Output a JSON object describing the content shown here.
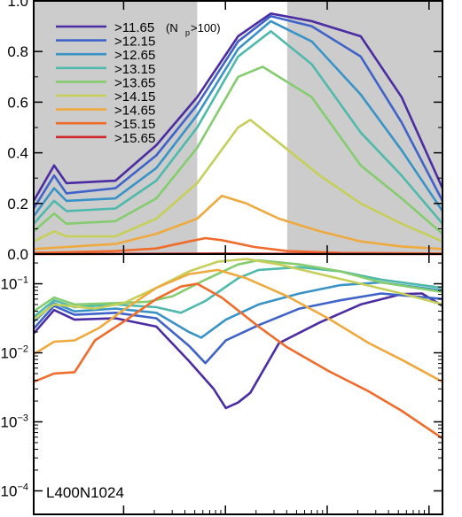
{
  "chart_data": [
    {
      "type": "line",
      "panel": "top",
      "x_tick_count": 4,
      "ylim": [
        0,
        1.0
      ],
      "yticks": [
        {
          "v": 0.0,
          "label": "0.0"
        },
        {
          "v": 0.2,
          "label": "0.2"
        },
        {
          "v": 0.4,
          "label": "0.4"
        },
        {
          "v": 0.6,
          "label": "0.6"
        },
        {
          "v": 0.8,
          "label": "0.8"
        },
        {
          "v": 1.0,
          "label": "1.0"
        }
      ],
      "shaded_bands": [
        {
          "from": 0.0,
          "to": 0.4,
          "color": "#cccccc"
        },
        {
          "from": 0.62,
          "to": 1.0,
          "color": "#cccccc"
        }
      ],
      "legend": {
        "placement": "top-left",
        "entries": [
          {
            "label": ">11.65",
            "note": "(N",
            "sub": "p",
            "note2": ">100)",
            "color": "#4b2ca3"
          },
          {
            "label": ">12.15",
            "color": "#3f63c8"
          },
          {
            "label": ">12.65",
            "color": "#3a93c6"
          },
          {
            "label": ">13.15",
            "color": "#4fb9ac"
          },
          {
            "label": ">13.65",
            "color": "#85cc6f"
          },
          {
            "label": ">14.15",
            "color": "#c5cf5a"
          },
          {
            "label": ">14.65",
            "color": "#eeaa3f"
          },
          {
            "label": ">15.15",
            "color": "#ef6c2c"
          },
          {
            "label": ">15.65",
            "color": "#d0282a"
          }
        ]
      },
      "series": [
        {
          "color": "#4b2ca3",
          "points": [
            [
              0.0,
              0.21
            ],
            [
              0.05,
              0.35
            ],
            [
              0.08,
              0.28
            ],
            [
              0.2,
              0.29
            ],
            [
              0.3,
              0.43
            ],
            [
              0.4,
              0.62
            ],
            [
              0.5,
              0.86
            ],
            [
              0.58,
              0.95
            ],
            [
              0.68,
              0.92
            ],
            [
              0.8,
              0.86
            ],
            [
              0.9,
              0.62
            ],
            [
              1.0,
              0.26
            ]
          ]
        },
        {
          "color": "#3f63c8",
          "points": [
            [
              0.0,
              0.18
            ],
            [
              0.05,
              0.31
            ],
            [
              0.08,
              0.24
            ],
            [
              0.2,
              0.26
            ],
            [
              0.3,
              0.39
            ],
            [
              0.4,
              0.59
            ],
            [
              0.5,
              0.84
            ],
            [
              0.58,
              0.94
            ],
            [
              0.68,
              0.9
            ],
            [
              0.8,
              0.78
            ],
            [
              0.9,
              0.52
            ],
            [
              1.0,
              0.21
            ]
          ]
        },
        {
          "color": "#3a93c6",
          "points": [
            [
              0.0,
              0.15
            ],
            [
              0.05,
              0.26
            ],
            [
              0.08,
              0.21
            ],
            [
              0.2,
              0.22
            ],
            [
              0.3,
              0.34
            ],
            [
              0.4,
              0.55
            ],
            [
              0.5,
              0.81
            ],
            [
              0.58,
              0.92
            ],
            [
              0.68,
              0.84
            ],
            [
              0.8,
              0.63
            ],
            [
              0.9,
              0.41
            ],
            [
              1.0,
              0.17
            ]
          ]
        },
        {
          "color": "#4fb9ac",
          "points": [
            [
              0.0,
              0.12
            ],
            [
              0.05,
              0.21
            ],
            [
              0.08,
              0.17
            ],
            [
              0.2,
              0.18
            ],
            [
              0.3,
              0.29
            ],
            [
              0.4,
              0.5
            ],
            [
              0.5,
              0.78
            ],
            [
              0.58,
              0.88
            ],
            [
              0.68,
              0.75
            ],
            [
              0.8,
              0.48
            ],
            [
              0.9,
              0.31
            ],
            [
              1.0,
              0.12
            ]
          ]
        },
        {
          "color": "#85cc6f",
          "points": [
            [
              0.0,
              0.09
            ],
            [
              0.05,
              0.16
            ],
            [
              0.08,
              0.12
            ],
            [
              0.2,
              0.13
            ],
            [
              0.3,
              0.22
            ],
            [
              0.4,
              0.42
            ],
            [
              0.5,
              0.7
            ],
            [
              0.56,
              0.74
            ],
            [
              0.68,
              0.62
            ],
            [
              0.8,
              0.35
            ],
            [
              0.9,
              0.22
            ],
            [
              1.0,
              0.08
            ]
          ]
        },
        {
          "color": "#c5cf5a",
          "points": [
            [
              0.0,
              0.05
            ],
            [
              0.05,
              0.09
            ],
            [
              0.08,
              0.07
            ],
            [
              0.2,
              0.07
            ],
            [
              0.3,
              0.14
            ],
            [
              0.4,
              0.28
            ],
            [
              0.5,
              0.5
            ],
            [
              0.53,
              0.53
            ],
            [
              0.6,
              0.44
            ],
            [
              0.7,
              0.31
            ],
            [
              0.8,
              0.2
            ],
            [
              0.9,
              0.12
            ],
            [
              1.0,
              0.05
            ]
          ]
        },
        {
          "color": "#eeaa3f",
          "points": [
            [
              0.0,
              0.02
            ],
            [
              0.1,
              0.03
            ],
            [
              0.2,
              0.04
            ],
            [
              0.3,
              0.08
            ],
            [
              0.4,
              0.14
            ],
            [
              0.46,
              0.23
            ],
            [
              0.52,
              0.2
            ],
            [
              0.6,
              0.14
            ],
            [
              0.7,
              0.09
            ],
            [
              0.8,
              0.05
            ],
            [
              0.9,
              0.03
            ],
            [
              1.0,
              0.02
            ]
          ]
        },
        {
          "color": "#ef6c2c",
          "points": [
            [
              0.0,
              0.005
            ],
            [
              0.1,
              0.008
            ],
            [
              0.2,
              0.012
            ],
            [
              0.3,
              0.022
            ],
            [
              0.38,
              0.05
            ],
            [
              0.42,
              0.063
            ],
            [
              0.46,
              0.055
            ],
            [
              0.54,
              0.028
            ],
            [
              0.62,
              0.012
            ],
            [
              0.75,
              0.005
            ],
            [
              0.9,
              0.003
            ],
            [
              1.0,
              0.002
            ]
          ]
        },
        {
          "color": "#d0282a",
          "points": [
            [
              0.0,
              0.0
            ],
            [
              0.3,
              0.001
            ],
            [
              0.45,
              0.002
            ],
            [
              0.6,
              0.001
            ],
            [
              1.0,
              0.0
            ]
          ]
        }
      ]
    },
    {
      "type": "line",
      "panel": "bottom",
      "y_scale": "log",
      "yticks": [
        {
          "exp": -1,
          "label_base": "10",
          "label_exp": "−1"
        },
        {
          "exp": -2,
          "label_base": "10",
          "label_exp": "−2"
        },
        {
          "exp": -3,
          "label_base": "10",
          "label_exp": "−3"
        },
        {
          "exp": -4,
          "label_base": "10",
          "label_exp": "−4"
        }
      ],
      "annotation": "L400N1024",
      "series": [
        {
          "color": "#4b2ca3",
          "points": [
            [
              0.0,
              -1.72
            ],
            [
              0.05,
              -1.38
            ],
            [
              0.1,
              -1.52
            ],
            [
              0.2,
              -1.5
            ],
            [
              0.3,
              -1.62
            ],
            [
              0.38,
              -2.12
            ],
            [
              0.44,
              -2.52
            ],
            [
              0.47,
              -2.8
            ],
            [
              0.5,
              -2.72
            ],
            [
              0.53,
              -2.58
            ],
            [
              0.6,
              -1.86
            ],
            [
              0.7,
              -1.56
            ],
            [
              0.8,
              -1.3
            ],
            [
              0.9,
              -1.15
            ],
            [
              0.95,
              -1.14
            ],
            [
              1.0,
              -1.32
            ]
          ]
        },
        {
          "color": "#3f63c8",
          "points": [
            [
              0.0,
              -1.65
            ],
            [
              0.05,
              -1.32
            ],
            [
              0.1,
              -1.45
            ],
            [
              0.2,
              -1.42
            ],
            [
              0.3,
              -1.5
            ],
            [
              0.38,
              -1.9
            ],
            [
              0.42,
              -2.15
            ],
            [
              0.47,
              -1.82
            ],
            [
              0.55,
              -1.6
            ],
            [
              0.65,
              -1.36
            ],
            [
              0.75,
              -1.24
            ],
            [
              0.85,
              -1.14
            ],
            [
              1.0,
              -1.22
            ]
          ]
        },
        {
          "color": "#3a93c6",
          "points": [
            [
              0.0,
              -1.55
            ],
            [
              0.05,
              -1.28
            ],
            [
              0.1,
              -1.4
            ],
            [
              0.2,
              -1.36
            ],
            [
              0.3,
              -1.42
            ],
            [
              0.38,
              -1.7
            ],
            [
              0.41,
              -1.78
            ],
            [
              0.47,
              -1.52
            ],
            [
              0.55,
              -1.3
            ],
            [
              0.65,
              -1.14
            ],
            [
              0.75,
              -1.02
            ],
            [
              0.85,
              -0.98
            ],
            [
              1.0,
              -1.1
            ]
          ]
        },
        {
          "color": "#4fb9ac",
          "points": [
            [
              0.0,
              -1.48
            ],
            [
              0.05,
              -1.24
            ],
            [
              0.1,
              -1.34
            ],
            [
              0.2,
              -1.3
            ],
            [
              0.3,
              -1.34
            ],
            [
              0.36,
              -1.42
            ],
            [
              0.42,
              -1.25
            ],
            [
              0.5,
              -0.92
            ],
            [
              0.55,
              -0.8
            ],
            [
              0.65,
              -0.76
            ],
            [
              0.75,
              -0.82
            ],
            [
              0.85,
              -0.94
            ],
            [
              1.0,
              -1.06
            ]
          ]
        },
        {
          "color": "#85cc6f",
          "points": [
            [
              0.0,
              -1.4
            ],
            [
              0.05,
              -1.2
            ],
            [
              0.1,
              -1.3
            ],
            [
              0.2,
              -1.28
            ],
            [
              0.28,
              -1.26
            ],
            [
              0.34,
              -1.18
            ],
            [
              0.42,
              -0.94
            ],
            [
              0.5,
              -0.72
            ],
            [
              0.55,
              -0.66
            ],
            [
              0.65,
              -0.72
            ],
            [
              0.75,
              -0.82
            ],
            [
              0.85,
              -0.98
            ],
            [
              1.0,
              -1.12
            ]
          ]
        },
        {
          "color": "#c5cf5a",
          "points": [
            [
              0.0,
              -1.52
            ],
            [
              0.05,
              -1.3
            ],
            [
              0.15,
              -1.36
            ],
            [
              0.22,
              -1.28
            ],
            [
              0.3,
              -1.06
            ],
            [
              0.38,
              -0.82
            ],
            [
              0.45,
              -0.68
            ],
            [
              0.52,
              -0.64
            ],
            [
              0.6,
              -0.72
            ],
            [
              0.7,
              -0.86
            ],
            [
              0.8,
              -1.0
            ],
            [
              0.9,
              -1.14
            ],
            [
              1.0,
              -1.3
            ]
          ]
        },
        {
          "color": "#eeaa3f",
          "points": [
            [
              0.0,
              -2.02
            ],
            [
              0.05,
              -1.84
            ],
            [
              0.1,
              -1.82
            ],
            [
              0.16,
              -1.64
            ],
            [
              0.22,
              -1.38
            ],
            [
              0.3,
              -1.06
            ],
            [
              0.38,
              -0.86
            ],
            [
              0.45,
              -0.8
            ],
            [
              0.52,
              -0.92
            ],
            [
              0.62,
              -1.18
            ],
            [
              0.72,
              -1.5
            ],
            [
              0.82,
              -1.86
            ],
            [
              0.9,
              -2.1
            ],
            [
              1.0,
              -2.42
            ]
          ]
        },
        {
          "color": "#ef6c2c",
          "points": [
            [
              0.0,
              -2.42
            ],
            [
              0.05,
              -2.3
            ],
            [
              0.1,
              -2.28
            ],
            [
              0.15,
              -1.82
            ],
            [
              0.22,
              -1.55
            ],
            [
              0.3,
              -1.22
            ],
            [
              0.36,
              -1.04
            ],
            [
              0.4,
              -1.0
            ],
            [
              0.46,
              -1.2
            ],
            [
              0.55,
              -1.62
            ],
            [
              0.62,
              -1.92
            ],
            [
              0.72,
              -2.26
            ],
            [
              0.82,
              -2.56
            ],
            [
              0.9,
              -2.84
            ],
            [
              1.0,
              -3.24
            ]
          ]
        }
      ]
    }
  ]
}
